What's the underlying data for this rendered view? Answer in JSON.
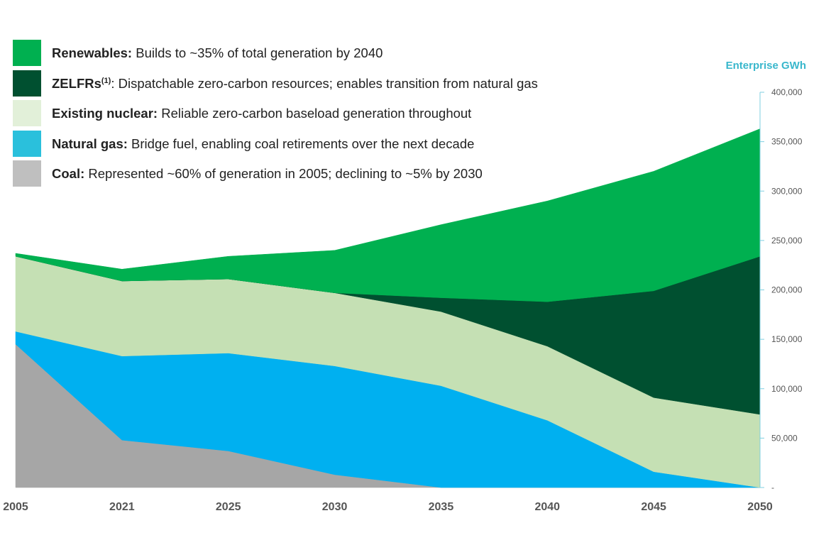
{
  "chart_data": {
    "type": "area",
    "stacked": true,
    "title": "",
    "xlabel": "",
    "ylabel": "Enterprise GWh",
    "y_axis_side": "right",
    "ylim": [
      0,
      400000
    ],
    "yticks": [
      0,
      50000,
      100000,
      150000,
      200000,
      250000,
      300000,
      350000,
      400000
    ],
    "ytick_labels": [
      "-",
      "50,000",
      "100,000",
      "150,000",
      "200,000",
      "250,000",
      "300,000",
      "350,000",
      "400,000"
    ],
    "categories": [
      "2005",
      "2021",
      "2025",
      "2030",
      "2035",
      "2040",
      "2045",
      "2050"
    ],
    "legend_position": "top-left",
    "series": [
      {
        "name": "Coal",
        "color": "#a6a6a6",
        "values": [
          145000,
          48000,
          37000,
          13000,
          0,
          0,
          0,
          0
        ]
      },
      {
        "name": "Natural gas",
        "color": "#00b0f0",
        "values": [
          13000,
          85000,
          99000,
          110000,
          103000,
          68000,
          16000,
          0
        ]
      },
      {
        "name": "Existing nuclear",
        "color": "#c5e0b4",
        "values": [
          76000,
          76000,
          75000,
          74000,
          75000,
          75000,
          75000,
          74000
        ]
      },
      {
        "name": "ZELFRs",
        "color": "#005030",
        "values": [
          0,
          0,
          0,
          0,
          14000,
          45000,
          108000,
          160000
        ]
      },
      {
        "name": "Renewables",
        "color": "#00b050",
        "values": [
          3000,
          12000,
          23000,
          43000,
          74000,
          102000,
          121000,
          129000
        ]
      }
    ]
  },
  "legend": [
    {
      "label": "Renewables:",
      "sup": "",
      "desc": " Builds to ~35% of total generation by 2040",
      "color": "#00b050"
    },
    {
      "label": "ZELFRs",
      "sup": "(1)",
      "desc": ": Dispatchable zero-carbon resources; enables transition from natural gas",
      "color": "#005030"
    },
    {
      "label": "Existing nuclear:",
      "sup": "",
      "desc": " Reliable zero-carbon baseload generation throughout",
      "color": "#e2f0d9"
    },
    {
      "label": "Natural gas:",
      "sup": "",
      "desc": " Bridge fuel, enabling coal retirements over the next decade",
      "color": "#2ac0dc"
    },
    {
      "label": "Coal:",
      "sup": "",
      "desc": " Represented ~60% of generation in 2005; declining to ~5% by 2030",
      "color": "#bfbfbf"
    }
  ]
}
